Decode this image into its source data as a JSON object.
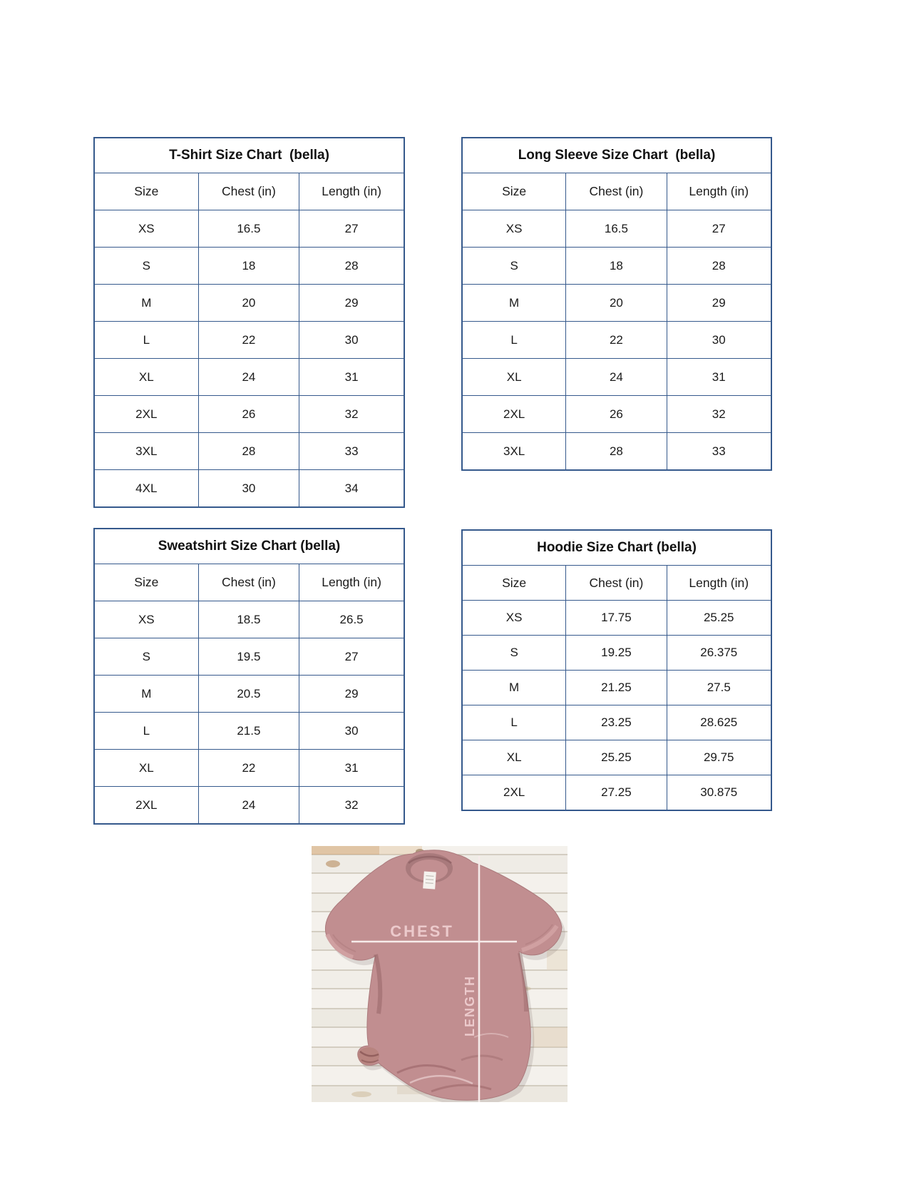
{
  "colors": {
    "table_border": "#35598c",
    "text": "#1a1a1a",
    "shirt": "#c18e90",
    "overlay_line": "#f6ebea",
    "overlay_text": "#eccacc"
  },
  "tables": [
    {
      "title": "T-Shirt Size Chart  (bella)",
      "columns": [
        "Size",
        "Chest (in)",
        "Length (in)"
      ],
      "rows": [
        [
          "XS",
          "16.5",
          "27"
        ],
        [
          "S",
          "18",
          "28"
        ],
        [
          "M",
          "20",
          "29"
        ],
        [
          "L",
          "22",
          "30"
        ],
        [
          "XL",
          "24",
          "31"
        ],
        [
          "2XL",
          "26",
          "32"
        ],
        [
          "3XL",
          "28",
          "33"
        ],
        [
          "4XL",
          "30",
          "34"
        ]
      ]
    },
    {
      "title": "Long Sleeve Size Chart  (bella)",
      "columns": [
        "Size",
        "Chest (in)",
        "Length (in)"
      ],
      "rows": [
        [
          "XS",
          "16.5",
          "27"
        ],
        [
          "S",
          "18",
          "28"
        ],
        [
          "M",
          "20",
          "29"
        ],
        [
          "L",
          "22",
          "30"
        ],
        [
          "XL",
          "24",
          "31"
        ],
        [
          "2XL",
          "26",
          "32"
        ],
        [
          "3XL",
          "28",
          "33"
        ]
      ]
    },
    {
      "title": "Sweatshirt Size Chart (bella)",
      "columns": [
        "Size",
        "Chest (in)",
        "Length (in)"
      ],
      "rows": [
        [
          "XS",
          "18.5",
          "26.5"
        ],
        [
          "S",
          "19.5",
          "27"
        ],
        [
          "M",
          "20.5",
          "29"
        ],
        [
          "L",
          "21.5",
          "30"
        ],
        [
          "XL",
          "22",
          "31"
        ],
        [
          "2XL",
          "24",
          "32"
        ]
      ]
    },
    {
      "title": "Hoodie Size Chart (bella)",
      "columns": [
        "Size",
        "Chest (in)",
        "Length (in)"
      ],
      "rows": [
        [
          "XS",
          "17.75",
          "25.25"
        ],
        [
          "S",
          "19.25",
          "26.375"
        ],
        [
          "M",
          "21.25",
          "27.5"
        ],
        [
          "L",
          "23.25",
          "28.625"
        ],
        [
          "XL",
          "25.25",
          "29.75"
        ],
        [
          "2XL",
          "27.25",
          "30.875"
        ]
      ]
    }
  ],
  "photo": {
    "chest_label": "CHEST",
    "length_label": "LENGTH"
  }
}
